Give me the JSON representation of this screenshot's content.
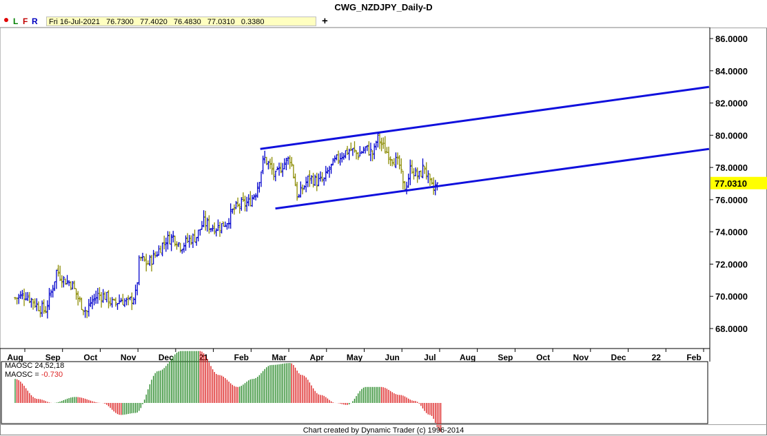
{
  "window": {
    "title": "CWG_NZDJPY_Daily-D"
  },
  "toolbar": {
    "btn_l": "L",
    "btn_f": "F",
    "btn_r": "R",
    "info": "Fri 16-Jul-2021   76.7300   77.4020   76.4830   77.0310   0.3380",
    "plus": "+"
  },
  "footer": {
    "credit": "Chart created by Dynamic Trader  (c) 1996-2014"
  },
  "indicator": {
    "name": "MAOSC 24,52,18",
    "value_label": "MAOSC = ",
    "value": "-0.730"
  },
  "colors": {
    "up_bar": "#0000cc",
    "down_bar": "#8b8b00",
    "trendline": "#1010dd",
    "osc_positive": "#2a8a2a",
    "osc_negative": "#dd2222",
    "last_price_bg": "#ffff00"
  },
  "chart_data": {
    "type": "ohlc",
    "symbol": "CWG_NZDJPY_Daily-D",
    "y_tick_labels": [
      "86.0000",
      "84.0000",
      "82.0000",
      "80.0000",
      "78.0000",
      "76.0000",
      "74.0000",
      "72.0000",
      "70.0000",
      "68.0000"
    ],
    "y_ticks": [
      86,
      84,
      82,
      80,
      78,
      76,
      74,
      72,
      70,
      68
    ],
    "ylim": [
      67.2,
      86.5
    ],
    "x_tick_labels": [
      "Aug",
      "Sep",
      "Oct",
      "Nov",
      "Dec",
      "21",
      "Feb",
      "Mar",
      "Apr",
      "May",
      "Jun",
      "Jul",
      "Aug",
      "Sep",
      "Oct",
      "Nov",
      "Dec",
      "22",
      "Feb"
    ],
    "x_tick_months": [
      0,
      1,
      2,
      3,
      4,
      5,
      6,
      7,
      8,
      9,
      10,
      11,
      12,
      13,
      14,
      15,
      16,
      17,
      18
    ],
    "x_range_months": [
      0.0,
      18.6
    ],
    "last_price": "77.0310",
    "last_price_value": 77.031,
    "closes": [
      [
        0.0,
        69.9
      ],
      [
        0.3,
        70.1
      ],
      [
        0.6,
        69.4
      ],
      [
        0.8,
        69.1
      ],
      [
        1.0,
        70.6
      ],
      [
        1.1,
        71.6
      ],
      [
        1.3,
        71.0
      ],
      [
        1.5,
        70.8
      ],
      [
        1.7,
        69.7
      ],
      [
        1.9,
        69.0
      ],
      [
        2.0,
        69.6
      ],
      [
        2.2,
        70.1
      ],
      [
        2.4,
        70.0
      ],
      [
        2.6,
        69.5
      ],
      [
        2.8,
        69.8
      ],
      [
        3.0,
        69.6
      ],
      [
        3.2,
        70.1
      ],
      [
        3.3,
        72.4
      ],
      [
        3.5,
        72.0
      ],
      [
        3.7,
        72.5
      ],
      [
        3.9,
        73.2
      ],
      [
        4.0,
        73.5
      ],
      [
        4.2,
        73.7
      ],
      [
        4.4,
        73.1
      ],
      [
        4.6,
        73.5
      ],
      [
        4.8,
        73.7
      ],
      [
        5.0,
        74.6
      ],
      [
        5.2,
        74.3
      ],
      [
        5.4,
        74.3
      ],
      [
        5.6,
        74.6
      ],
      [
        5.8,
        75.4
      ],
      [
        6.0,
        75.7
      ],
      [
        6.2,
        75.8
      ],
      [
        6.4,
        76.6
      ],
      [
        6.5,
        77.6
      ],
      [
        6.6,
        78.6
      ],
      [
        6.75,
        78.1
      ],
      [
        6.9,
        77.4
      ],
      [
        7.1,
        78.2
      ],
      [
        7.3,
        78.6
      ],
      [
        7.4,
        77.3
      ],
      [
        7.5,
        76.0
      ],
      [
        7.6,
        76.6
      ],
      [
        7.8,
        77.4
      ],
      [
        8.0,
        77.1
      ],
      [
        8.2,
        77.2
      ],
      [
        8.3,
        77.8
      ],
      [
        8.5,
        78.4
      ],
      [
        8.7,
        78.9
      ],
      [
        8.9,
        79.1
      ],
      [
        9.1,
        78.8
      ],
      [
        9.3,
        79.2
      ],
      [
        9.5,
        78.8
      ],
      [
        9.6,
        79.9
      ],
      [
        9.8,
        79.1
      ],
      [
        10.0,
        78.6
      ],
      [
        10.2,
        78.1
      ],
      [
        10.3,
        76.6
      ],
      [
        10.4,
        77.1
      ],
      [
        10.5,
        78.1
      ],
      [
        10.6,
        77.6
      ],
      [
        10.7,
        77.4
      ],
      [
        10.85,
        78.1
      ],
      [
        11.0,
        76.9
      ],
      [
        11.1,
        76.6
      ],
      [
        11.2,
        77.031
      ]
    ],
    "trendlines": [
      {
        "name": "upper channel",
        "from": [
          6.5,
          79.15
        ],
        "to": [
          18.4,
          83.0
        ]
      },
      {
        "name": "lower channel",
        "from": [
          6.9,
          75.45
        ],
        "to": [
          18.4,
          79.15
        ]
      }
    ],
    "oscillator": {
      "name": "MAOSC 24,52,18",
      "current": -0.73,
      "keypoints": [
        [
          0.0,
          0.6
        ],
        [
          0.6,
          0.1
        ],
        [
          1.0,
          0.0
        ],
        [
          1.6,
          0.15
        ],
        [
          2.3,
          0.0
        ],
        [
          2.8,
          -0.3
        ],
        [
          3.2,
          -0.25
        ],
        [
          3.8,
          0.8
        ],
        [
          4.4,
          1.3
        ],
        [
          4.9,
          1.3
        ],
        [
          5.4,
          0.7
        ],
        [
          5.9,
          0.4
        ],
        [
          6.3,
          0.6
        ],
        [
          6.8,
          0.95
        ],
        [
          7.3,
          1.0
        ],
        [
          7.6,
          0.7
        ],
        [
          8.1,
          0.2
        ],
        [
          8.5,
          0.0
        ],
        [
          8.8,
          -0.05
        ],
        [
          9.3,
          0.4
        ],
        [
          9.7,
          0.4
        ],
        [
          10.2,
          0.2
        ],
        [
          10.6,
          0.05
        ],
        [
          11.0,
          -0.3
        ],
        [
          11.3,
          -0.73
        ]
      ]
    }
  }
}
